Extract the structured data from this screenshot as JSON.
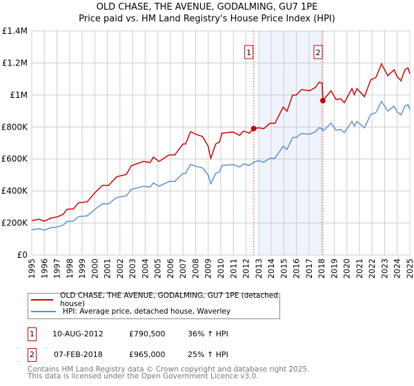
{
  "chart_data": {
    "type": "line",
    "title": "OLD CHASE, THE AVENUE, GODALMING, GU7 1PE",
    "subtitle": "Price paid vs. HM Land Registry's House Price Index (HPI)",
    "xlim": [
      1995,
      2025
    ],
    "ylim": [
      0,
      1400000
    ],
    "y_ticks": [
      {
        "v": 0,
        "label": "£0"
      },
      {
        "v": 200000,
        "label": "£200K"
      },
      {
        "v": 400000,
        "label": "£400K"
      },
      {
        "v": 600000,
        "label": "£600K"
      },
      {
        "v": 800000,
        "label": "£800K"
      },
      {
        "v": 1000000,
        "label": "£1M"
      },
      {
        "v": 1200000,
        "label": "£1.2M"
      },
      {
        "v": 1400000,
        "label": "£1.4M"
      }
    ],
    "x_ticks": [
      "1995",
      "1996",
      "1997",
      "1998",
      "1999",
      "2000",
      "2001",
      "2002",
      "2003",
      "2004",
      "2005",
      "2006",
      "2007",
      "2008",
      "2009",
      "2010",
      "2011",
      "2012",
      "2013",
      "2014",
      "2015",
      "2016",
      "2017",
      "2018",
      "2019",
      "2020",
      "2021",
      "2022",
      "2023",
      "2024",
      "2025"
    ],
    "grid": true,
    "shaded_range": [
      2013.0,
      2018.1
    ],
    "colors": {
      "property": "#cc0000",
      "hpi": "#5b8fd0",
      "shade": "#eef3fc",
      "grid": "#cccccc"
    },
    "series": [
      {
        "name": "OLD CHASE, THE AVENUE, GODALMING, GU7 1PE (detached house)",
        "key": "property",
        "x": [
          1995.0,
          1995.6,
          1996.0,
          1996.5,
          1997.0,
          1997.5,
          1997.8,
          1998.3,
          1998.7,
          1999.4,
          2000.0,
          2000.6,
          2001.1,
          2001.75,
          2002.5,
          2002.9,
          2003.85,
          2004.4,
          2004.65,
          2005.1,
          2005.9,
          2006.35,
          2007.0,
          2007.2,
          2007.6,
          2008.0,
          2008.55,
          2009.0,
          2009.2,
          2009.6,
          2009.9,
          2010.1,
          2011.0,
          2011.5,
          2011.8,
          2012.25,
          2012.65,
          2013.0,
          2013.4,
          2013.9,
          2014.3,
          2014.6,
          2014.95,
          2015.25,
          2015.7,
          2016.0,
          2016.4,
          2017.05,
          2017.5,
          2017.8,
          2018.05,
          2018.1,
          2018.75,
          2019.15,
          2019.5,
          2019.8,
          2020.4,
          2020.6,
          2020.8,
          2021.4,
          2021.9,
          2022.3,
          2022.75,
          2023.25,
          2023.75,
          2024.0,
          2024.3,
          2024.6,
          2024.85,
          2025.0
        ],
        "values": [
          215,
          224,
          211,
          231,
          238,
          254,
          286,
          288,
          326,
          333,
          388,
          435,
          435,
          490,
          503,
          558,
          585,
          578,
          612,
          585,
          626,
          626,
          694,
          694,
          771,
          755,
          741,
          680,
          605,
          694,
          707,
          762,
          768,
          748,
          775,
          762,
          790,
          795,
          789,
          823,
          823,
          870,
          925,
          898,
          1000,
          1000,
          1034,
          1027,
          1047,
          1081,
          1074,
          965,
          1027,
          971,
          977,
          952,
          1040,
          1002,
          1040,
          990,
          1096,
          1108,
          1195,
          1121,
          1158,
          1114,
          1089,
          1158,
          1170,
          1133
        ]
      },
      {
        "name": "HPI: Average price, detached house, Waverley",
        "key": "hpi",
        "x": [
          1995.0,
          1995.6,
          1996.0,
          1996.5,
          1997.0,
          1997.5,
          1997.8,
          1998.3,
          1998.7,
          1999.4,
          2000.0,
          2000.6,
          2001.1,
          2001.75,
          2002.5,
          2002.9,
          2003.85,
          2004.4,
          2004.65,
          2005.1,
          2005.9,
          2006.35,
          2007.0,
          2007.2,
          2007.6,
          2008.0,
          2008.55,
          2009.0,
          2009.2,
          2009.6,
          2009.9,
          2010.1,
          2011.0,
          2011.5,
          2011.8,
          2012.25,
          2012.65,
          2013.0,
          2013.4,
          2013.9,
          2014.3,
          2014.6,
          2014.95,
          2015.25,
          2015.7,
          2016.0,
          2016.4,
          2017.05,
          2017.5,
          2017.8,
          2018.05,
          2018.1,
          2018.75,
          2019.15,
          2019.5,
          2019.8,
          2020.4,
          2020.6,
          2020.8,
          2021.4,
          2021.9,
          2022.3,
          2022.75,
          2023.25,
          2023.75,
          2024.0,
          2024.3,
          2024.6,
          2024.85,
          2025.0
        ],
        "values": [
          158,
          165,
          155,
          170,
          175,
          187,
          210,
          212,
          240,
          245,
          285,
          320,
          320,
          360,
          370,
          410,
          430,
          425,
          450,
          430,
          460,
          460,
          510,
          510,
          567,
          555,
          545,
          500,
          445,
          510,
          520,
          560,
          565,
          550,
          570,
          560,
          581,
          590,
          580,
          605,
          605,
          640,
          680,
          660,
          735,
          735,
          760,
          755,
          770,
          795,
          790,
          775,
          825,
          780,
          785,
          765,
          835,
          805,
          835,
          795,
          880,
          890,
          960,
          900,
          930,
          895,
          875,
          930,
          940,
          910
        ]
      }
    ],
    "value_unit": "thousand GBP",
    "sales": [
      {
        "num": "1",
        "x": 2012.61,
        "value": 790500,
        "date": "10-AUG-2012",
        "price": "£790,500",
        "hpi": "36% ↑ HPI"
      },
      {
        "num": "2",
        "x": 2018.1,
        "value": 965000,
        "date": "07-FEB-2018",
        "price": "£965,000",
        "hpi": "25% ↑ HPI"
      }
    ]
  },
  "legend": {
    "property": "OLD CHASE, THE AVENUE, GODALMING, GU7 1PE (detached house)",
    "hpi": "HPI: Average price, detached house, Waverley"
  },
  "footer": {
    "line1": "Contains HM Land Registry data © Crown copyright and database right 2025.",
    "line2": "This data is licensed under the Open Government Licence v3.0."
  }
}
